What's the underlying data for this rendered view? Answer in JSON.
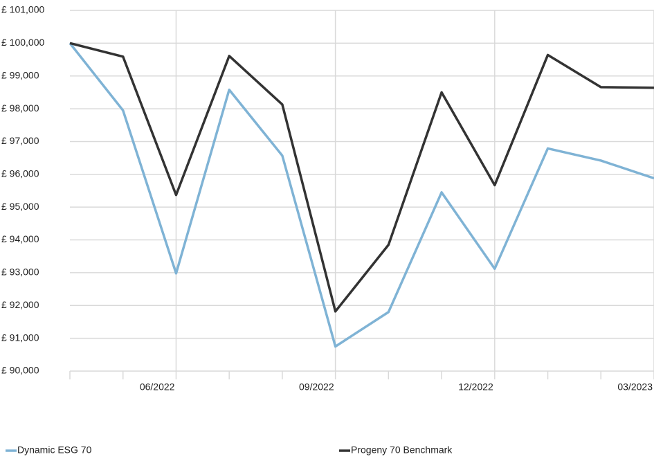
{
  "chart_data": {
    "type": "line",
    "categories": [
      null,
      null,
      "06/2022",
      null,
      null,
      "09/2022",
      null,
      null,
      "12/2022",
      null,
      null,
      "03/2023"
    ],
    "series": [
      {
        "name": "Dynamic ESG 70",
        "color": "#7fb3d5",
        "values": [
          100000,
          97950,
          92980,
          98580,
          96570,
          90750,
          91800,
          95450,
          93120,
          96790,
          96420,
          95880
        ]
      },
      {
        "name": "Progeny 70 Benchmark",
        "color": "#333333",
        "values": [
          100000,
          99590,
          95370,
          99610,
          98130,
          91820,
          93850,
          98500,
          95670,
          99640,
          98660,
          98640
        ]
      }
    ],
    "ylim": [
      90000,
      101000
    ],
    "yticks": [
      {
        "value": 90000,
        "label": "£ 90,000"
      },
      {
        "value": 91000,
        "label": "£ 91,000"
      },
      {
        "value": 92000,
        "label": "£ 92,000"
      },
      {
        "value": 93000,
        "label": "£ 93,000"
      },
      {
        "value": 94000,
        "label": "£ 94,000"
      },
      {
        "value": 95000,
        "label": "£ 95,000"
      },
      {
        "value": 96000,
        "label": "£ 96,000"
      },
      {
        "value": 97000,
        "label": "£ 97,000"
      },
      {
        "value": 98000,
        "label": "£ 98,000"
      },
      {
        "value": 99000,
        "label": "£ 99,000"
      },
      {
        "value": 100000,
        "label": "£ 100,000"
      },
      {
        "value": 101000,
        "label": "£ 101,000"
      }
    ],
    "grid": true
  }
}
